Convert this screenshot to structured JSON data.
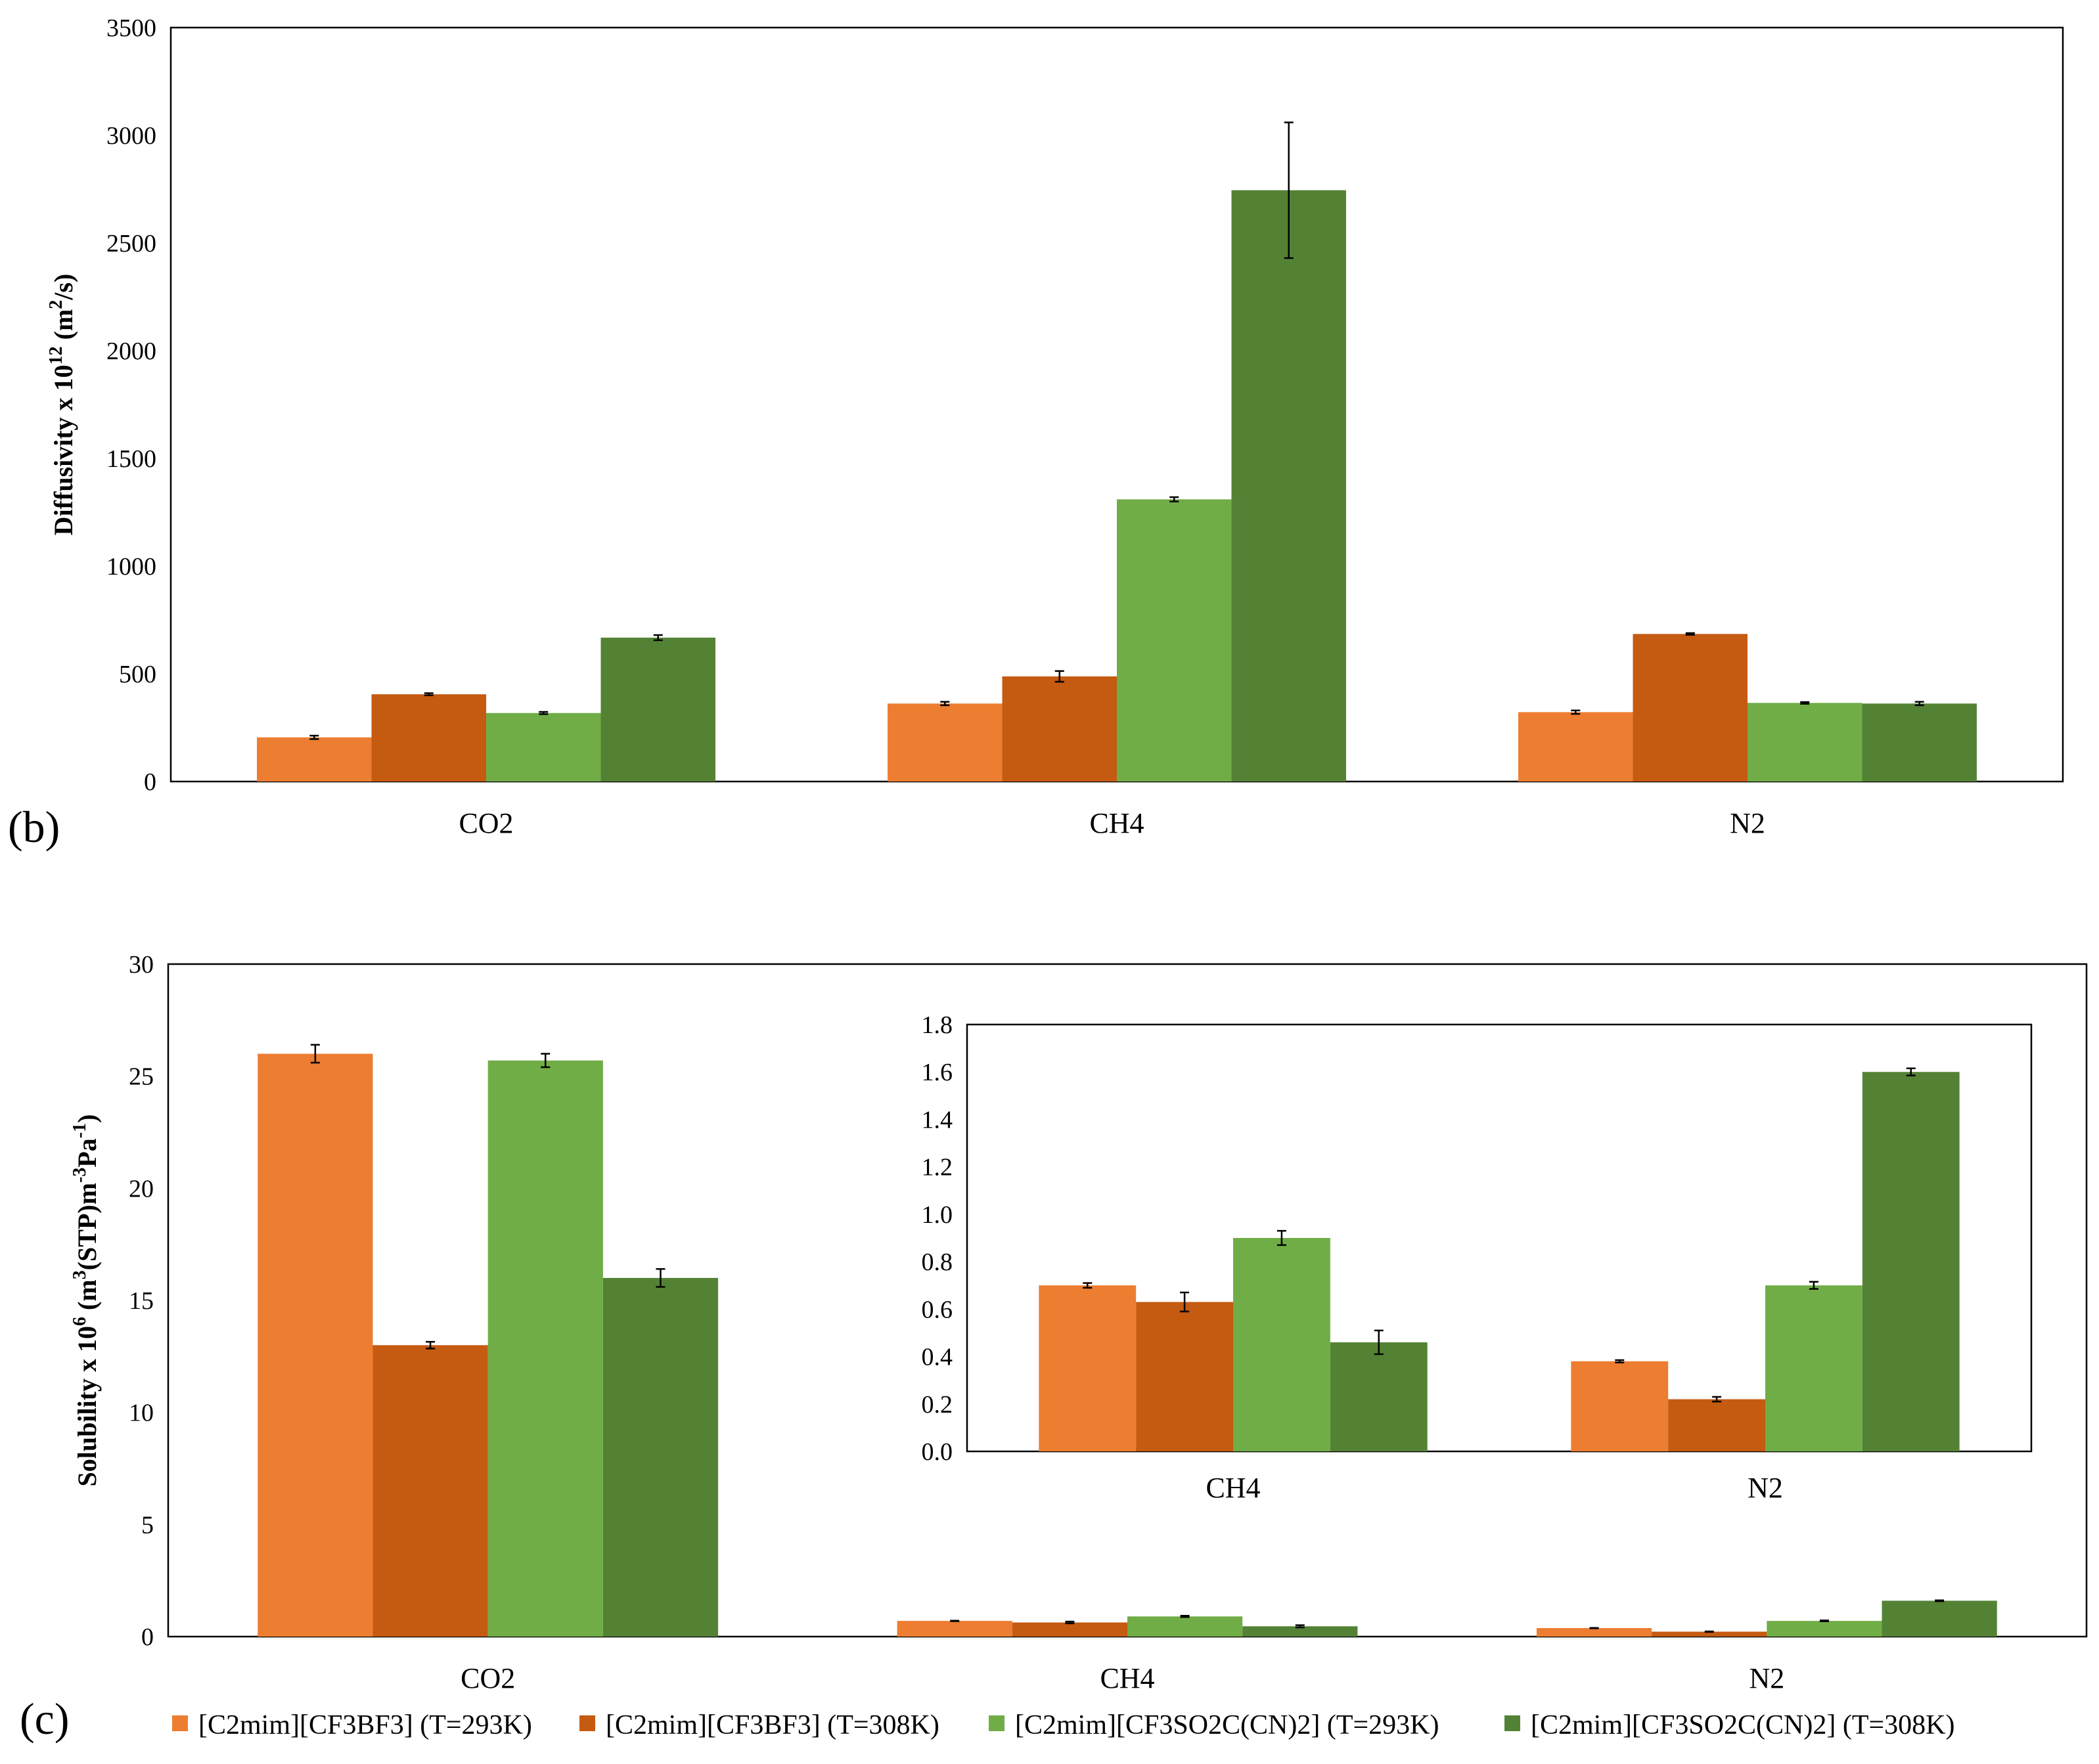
{
  "chart_data": [
    {
      "panel": "(b)",
      "type": "bar",
      "ylabel": {
        "base": "Diffusivity x 10",
        "exp": "12",
        "unit_pre": " (m",
        "unit_exp": "2",
        "unit_post": "/s)"
      },
      "xlabel": "",
      "categories": [
        "CO2",
        "CH4",
        "N2"
      ],
      "ylim": [
        0,
        3500
      ],
      "yticks": [
        0,
        500,
        1000,
        1500,
        2000,
        2500,
        3000,
        3500
      ],
      "tick_decimals": 0,
      "series": [
        {
          "name": "[C2mim][CF3BF3] (T=293K)",
          "values": [
            205,
            362,
            322
          ],
          "errors": [
            8,
            8,
            8
          ]
        },
        {
          "name": "[C2mim][CF3BF3] (T=308K)",
          "values": [
            405,
            488,
            685
          ],
          "errors": [
            5,
            25,
            4
          ]
        },
        {
          "name": "[C2mim][CF3SO2C(CN)2] (T=293K)",
          "values": [
            318,
            1310,
            365
          ],
          "errors": [
            5,
            10,
            4
          ]
        },
        {
          "name": "[C2mim][CF3SO2C(CN)2] (T=308K)",
          "values": [
            668,
            2745,
            362
          ],
          "errors": [
            12,
            315,
            8
          ]
        }
      ]
    },
    {
      "panel": "(c)",
      "type": "bar",
      "ylabel": {
        "base": "Solubility x 10",
        "exp": "6",
        "unit_pre": " (m",
        "unit_exp": "3",
        "unit_post": "(STP)m",
        "unit_exp2": "-3",
        "unit_post2": "Pa",
        "unit_exp3": "-1",
        "unit_end": ")"
      },
      "xlabel": "",
      "categories": [
        "CO2",
        "CH4",
        "N2"
      ],
      "ylim": [
        0,
        30
      ],
      "yticks": [
        0,
        5,
        10,
        15,
        20,
        25,
        30
      ],
      "tick_decimals": 0,
      "series": [
        {
          "name": "[C2mim][CF3BF3] (T=293K)",
          "values": [
            26.0,
            0.7,
            0.38
          ],
          "errors": [
            0.4,
            0.01,
            0.01
          ]
        },
        {
          "name": "[C2mim][CF3BF3] (T=308K)",
          "values": [
            13.0,
            0.63,
            0.22
          ],
          "errors": [
            0.15,
            0.04,
            0.01
          ]
        },
        {
          "name": "[C2mim][CF3SO2C(CN)2] (T=293K)",
          "values": [
            25.7,
            0.9,
            0.7
          ],
          "errors": [
            0.3,
            0.03,
            0.02
          ]
        },
        {
          "name": "[C2mim][CF3SO2C(CN)2] (T=308K)",
          "values": [
            16.0,
            0.46,
            1.6
          ],
          "errors": [
            0.4,
            0.05,
            0.02
          ]
        }
      ],
      "inset": {
        "type": "bar",
        "categories": [
          "CH4",
          "N2"
        ],
        "ylim": [
          0,
          1.8
        ],
        "yticks": [
          0.0,
          0.2,
          0.4,
          0.6,
          0.8,
          1.0,
          1.2,
          1.4,
          1.6,
          1.8
        ],
        "tick_decimals": 1,
        "series": [
          {
            "name": "[C2mim][CF3BF3] (T=293K)",
            "values": [
              0.7,
              0.38
            ],
            "errors": [
              0.01,
              0.005
            ]
          },
          {
            "name": "[C2mim][CF3BF3] (T=308K)",
            "values": [
              0.63,
              0.22
            ],
            "errors": [
              0.04,
              0.01
            ]
          },
          {
            "name": "[C2mim][CF3SO2C(CN)2] (T=293K)",
            "values": [
              0.9,
              0.7
            ],
            "errors": [
              0.03,
              0.015
            ]
          },
          {
            "name": "[C2mim][CF3SO2C(CN)2] (T=308K)",
            "values": [
              0.46,
              1.6
            ],
            "errors": [
              0.05,
              0.015
            ]
          }
        ]
      }
    }
  ],
  "legend": {
    "entries": [
      "[C2mim][CF3BF3] (T=293K)",
      "[C2mim][CF3BF3] (T=308K)",
      "[C2mim][CF3SO2C(CN)2] (T=293K)",
      "[C2mim][CF3SO2C(CN)2] (T=308K)"
    ],
    "placement": "bottom"
  },
  "colors": [
    "#ED7D31",
    "#C55A11",
    "#70AD47",
    "#548235"
  ]
}
